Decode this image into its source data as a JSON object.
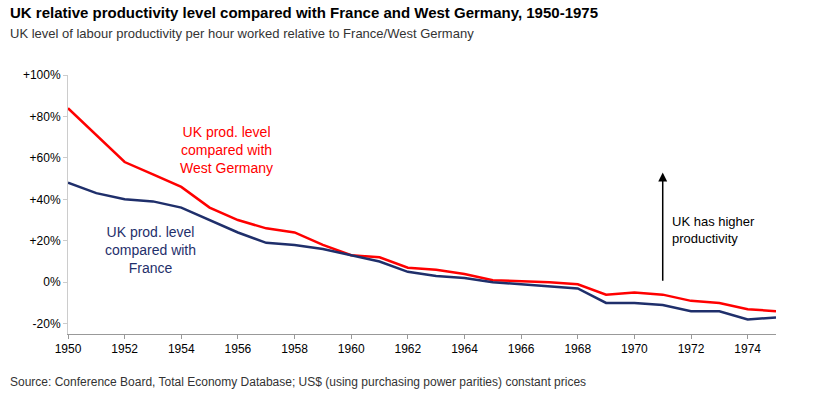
{
  "chart_data": {
    "type": "line",
    "title": "UK relative productivity level compared with France and West Germany, 1950-1975",
    "subtitle": "UK level of labour productivity per hour worked relative to France/West Germany",
    "source": "Source: Conference Board, Total Economy Database; US$ (using purchasing power parities) constant prices",
    "annotations": [
      "UK has higher productivity"
    ],
    "x": [
      1950,
      1951,
      1952,
      1953,
      1954,
      1955,
      1956,
      1957,
      1958,
      1959,
      1960,
      1961,
      1962,
      1963,
      1964,
      1965,
      1966,
      1967,
      1968,
      1969,
      1970,
      1971,
      1972,
      1973,
      1974,
      1975
    ],
    "xlim": [
      1950,
      1975
    ],
    "xticks": [
      1950,
      1952,
      1954,
      1956,
      1958,
      1960,
      1962,
      1964,
      1966,
      1968,
      1970,
      1972,
      1974
    ],
    "ylim": [
      -25,
      100
    ],
    "yticks": [
      {
        "value": -20,
        "label": "-20%"
      },
      {
        "value": 0,
        "label": "0%"
      },
      {
        "value": 20,
        "label": "+20%"
      },
      {
        "value": 40,
        "label": "+40%"
      },
      {
        "value": 60,
        "label": "+60%"
      },
      {
        "value": 80,
        "label": "+80%"
      },
      {
        "value": 100,
        "label": "+100%"
      }
    ],
    "grid": false,
    "series": [
      {
        "name": "UK prod. level compared with West Germany",
        "color": "#ff0000",
        "values": [
          84,
          71,
          58,
          52,
          46,
          36,
          30,
          26,
          24,
          18,
          13,
          12,
          7,
          6,
          4,
          1,
          0.5,
          0,
          -1,
          -6,
          -5,
          -6,
          -9,
          -10,
          -13,
          -14
        ]
      },
      {
        "name": "UK prod. level compared with France",
        "color": "#1f2f6b",
        "values": [
          48,
          43,
          40,
          39,
          36,
          30,
          24,
          19,
          18,
          16,
          13,
          10,
          5,
          3,
          2,
          0,
          -1,
          -2,
          -3,
          -10,
          -10,
          -11,
          -14,
          -14,
          -18,
          -17
        ]
      }
    ]
  }
}
